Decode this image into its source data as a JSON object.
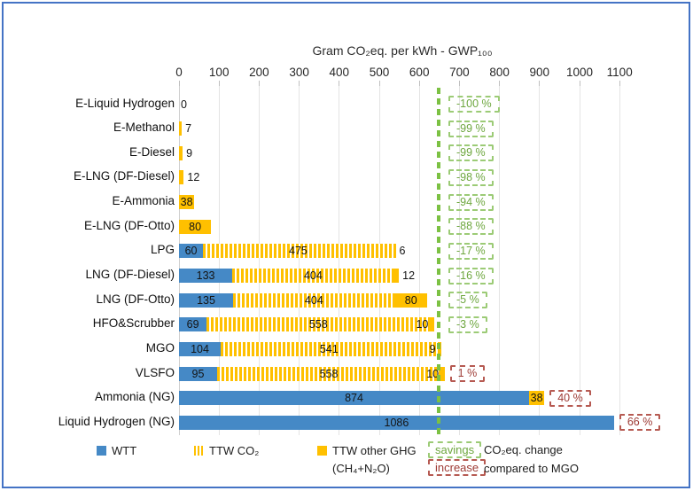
{
  "chart_data": {
    "type": "bar",
    "orientation": "horizontal",
    "title": "Gram CO₂eq. per kWh - GWP₁₀₀",
    "axis": {
      "min": 0,
      "max": 1100,
      "tick_step": 100,
      "ticks": [
        0,
        100,
        200,
        300,
        400,
        500,
        600,
        700,
        800,
        900,
        1000,
        1100
      ]
    },
    "series": [
      {
        "name": "WTT",
        "key": "wtt",
        "color": "#4589C6",
        "style": "solid-blue"
      },
      {
        "name": "TTW CO₂",
        "key": "ttw_co2",
        "color": "#FFC000",
        "style": "striped"
      },
      {
        "name": "TTW other GHG (CH₄+N₂O)",
        "key": "ttw_other",
        "color": "#FFC000",
        "style": "solid-orange"
      }
    ],
    "rows": [
      {
        "label": "E-Liquid Hydrogen",
        "wtt": 0,
        "ttw_co2": 0,
        "ttw_other": 0,
        "zero_label": "0",
        "change": "-100 %",
        "change_type": "savings"
      },
      {
        "label": "E-Methanol",
        "wtt": 0,
        "ttw_co2": 0,
        "ttw_other": 7,
        "change": "-99 %",
        "change_type": "savings"
      },
      {
        "label": "E-Diesel",
        "wtt": 0,
        "ttw_co2": 0,
        "ttw_other": 9,
        "change": "-99 %",
        "change_type": "savings"
      },
      {
        "label": "E-LNG (DF-Diesel)",
        "wtt": 0,
        "ttw_co2": 0,
        "ttw_other": 12,
        "change": "-98 %",
        "change_type": "savings"
      },
      {
        "label": "E-Ammonia",
        "wtt": 0,
        "ttw_co2": 0,
        "ttw_other": 38,
        "change": "-94 %",
        "change_type": "savings"
      },
      {
        "label": "E-LNG (DF-Otto)",
        "wtt": 0,
        "ttw_co2": 0,
        "ttw_other": 80,
        "change": "-88 %",
        "change_type": "savings"
      },
      {
        "label": "LPG",
        "wtt": 60,
        "ttw_co2": 475,
        "ttw_other": 6,
        "change": "-17 %",
        "change_type": "savings"
      },
      {
        "label": "LNG (DF-Diesel)",
        "wtt": 133,
        "ttw_co2": 404,
        "ttw_other": 12,
        "change": "-16 %",
        "change_type": "savings"
      },
      {
        "label": "LNG (DF-Otto)",
        "wtt": 135,
        "ttw_co2": 404,
        "ttw_other": 80,
        "change": "-5 %",
        "change_type": "savings"
      },
      {
        "label": "HFO&Scrubber",
        "wtt": 69,
        "ttw_co2": 558,
        "ttw_other": 10,
        "change": "-3 %",
        "change_type": "savings"
      },
      {
        "label": "MGO",
        "wtt": 104,
        "ttw_co2": 541,
        "ttw_other": 9,
        "change": null,
        "change_type": null
      },
      {
        "label": "VLSFO",
        "wtt": 95,
        "ttw_co2": 558,
        "ttw_other": 10,
        "change": "1 %",
        "change_type": "increase"
      },
      {
        "label": "Ammonia (NG)",
        "wtt": 874,
        "ttw_co2": 0,
        "ttw_other": 38,
        "change": "40 %",
        "change_type": "increase"
      },
      {
        "label": "Liquid Hydrogen (NG)",
        "wtt": 1086,
        "ttw_co2": 0,
        "ttw_other": 0,
        "change": "66 %",
        "change_type": "increase"
      }
    ],
    "reference_line": {
      "value": 654,
      "color": "#7CC143",
      "style": "dashed",
      "meaning_row": "MGO"
    }
  },
  "legend": {
    "wtt_label": "WTT",
    "ttw_co2_label": "TTW CO₂",
    "ttw_other_label": "TTW other GHG",
    "ttw_other_label_line2": "(CH₄+N₂O)",
    "savings_label": "savings",
    "increase_label": "increase",
    "note_line1": "CO₂eq. change",
    "note_line2": "compared to MGO"
  },
  "colors": {
    "wtt_blue": "#4589C6",
    "ttw_orange": "#FFC000",
    "savings_green": "#6EA73F",
    "increase_red": "#9E3B35",
    "reference_green": "#7CC143",
    "frame_blue": "#4473C5"
  }
}
